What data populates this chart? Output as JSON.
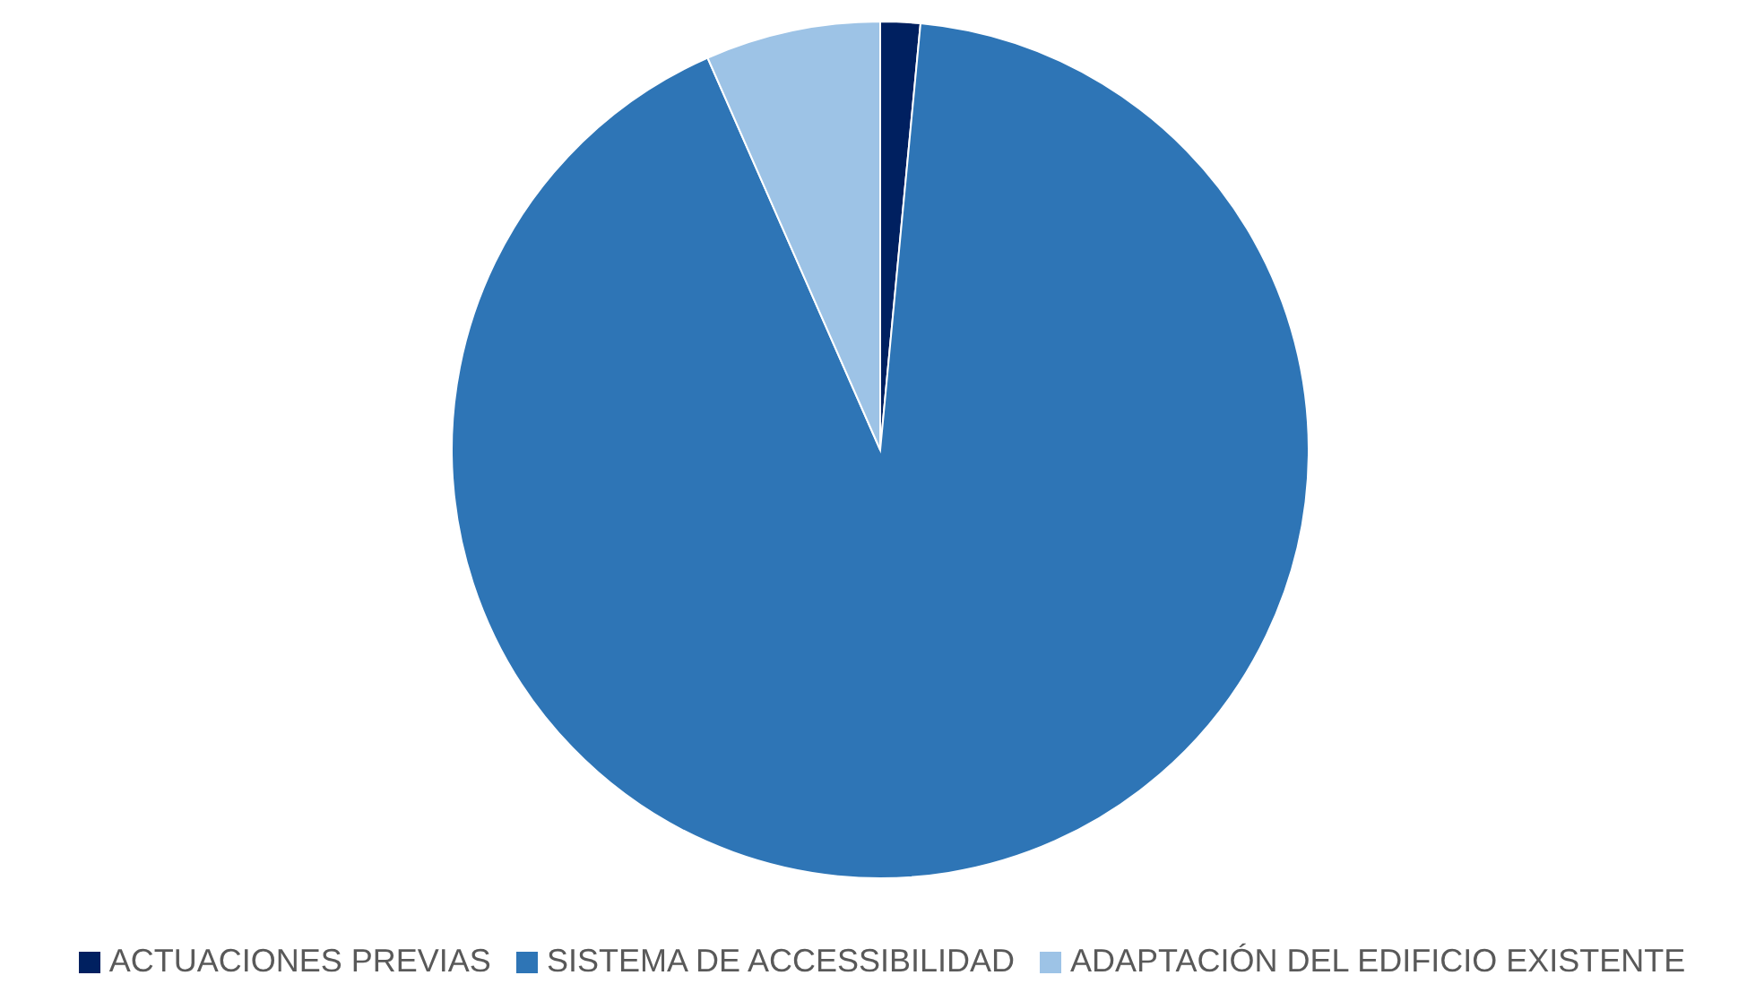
{
  "chart_data": {
    "type": "pie",
    "categories": [
      "ACTUACIONES PREVIAS",
      "SISTEMA DE ACCESSIBILIDAD",
      "ADAPTACIÓN DEL EDIFICIO EXISTENTE"
    ],
    "values": [
      1.5,
      91.9,
      6.6
    ],
    "colors": [
      "#002060",
      "#2e75b6",
      "#9dc3e6"
    ],
    "legend": "bottom"
  }
}
